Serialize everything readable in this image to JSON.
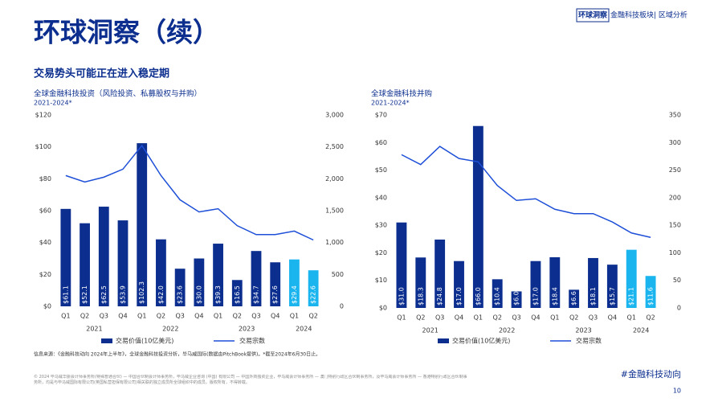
{
  "header": {
    "brand": "环球洞察",
    "section": "金融科技板块",
    "region": "| 区域分析"
  },
  "title": "环球洞察（续）",
  "subtitle": "交易势头可能正在进入稳定期",
  "source": "信息来源：《金融科技动向 2024年上半年》，全球金融科技投资分析，毕马威国际(数据由PitchBook提供)。*截至2024年6月30日止。",
  "footer": {
    "legal": "© 2024 毕马威华振会计师事务所(特殊普通合伙) — 中国合伙制会计师事务所，毕马威企业咨询 (中国) 有限公司 — 中国外商独资企业，毕马威会计师事务所 — 澳门特别行政区合伙制事务所，及毕马威会计师事务所 — 香港特别行政区合伙制事务所，均是与毕马威国际有限公司(英国私营担保有限公司)相关联的独立成员所全球组织中的成员。版权所有，不得转载。",
    "hashtag": "#金融科技动向",
    "page": "10"
  },
  "chart_data": [
    {
      "type": "bar-line",
      "title": "全球金融科技投资（风险投资、私募股权与并购）",
      "subtitle": "2021-2024*",
      "categories": [
        "Q1",
        "Q2",
        "Q3",
        "Q4",
        "Q1",
        "Q2",
        "Q3",
        "Q4",
        "Q1",
        "Q2",
        "Q3",
        "Q4",
        "Q1",
        "Q2"
      ],
      "x_groups": [
        "2021",
        "2022",
        "2023",
        "2024"
      ],
      "series": [
        {
          "name": "交易价值(10亿美元)",
          "color": "#0c2f8f",
          "bar_colors": [
            "#0c2f8f",
            "#0c2f8f",
            "#0c2f8f",
            "#0c2f8f",
            "#0c2f8f",
            "#0c2f8f",
            "#0c2f8f",
            "#0c2f8f",
            "#0c2f8f",
            "#0c2f8f",
            "#0c2f8f",
            "#0c2f8f",
            "#1ab5ef",
            "#1ab5ef"
          ],
          "values": [
            61.1,
            52.1,
            62.5,
            53.9,
            102.3,
            42.0,
            23.6,
            30.0,
            39.3,
            16.5,
            34.7,
            27.6,
            29.4,
            22.6
          ],
          "value_labels": [
            "$61.1",
            "$52.1",
            "$62.5",
            "$53.9",
            "$102.3",
            "$42.0",
            "$23.6",
            "$30.0",
            "$39.3",
            "$16.5",
            "$34.7",
            "$27.6",
            "$29.4",
            "$22.6"
          ]
        },
        {
          "name": "交易宗数",
          "color": "#1e4fd8",
          "axis": "y2",
          "values": [
            2050,
            1950,
            2025,
            2150,
            2520,
            2050,
            1670,
            1480,
            1530,
            1265,
            1125,
            1125,
            1180,
            1040
          ]
        }
      ],
      "ylim": [
        0,
        120
      ],
      "yticks": [
        {
          "value": 0,
          "label": "$0"
        },
        {
          "value": 20,
          "label": "$20"
        },
        {
          "value": 40,
          "label": "$40"
        },
        {
          "value": 60,
          "label": "$60"
        },
        {
          "value": 80,
          "label": "$80"
        },
        {
          "value": 100,
          "label": "$100"
        },
        {
          "value": 120,
          "label": "$120"
        }
      ],
      "y2lim": [
        0,
        3000
      ],
      "y2ticks": [
        0,
        500,
        {
          "value": 1000,
          "label": "1,000"
        },
        {
          "value": 1500,
          "label": "1,500"
        },
        {
          "value": 2000,
          "label": "2,000"
        },
        {
          "value": 2500,
          "label": "2,500"
        },
        {
          "value": 3000,
          "label": "3,000"
        }
      ]
    },
    {
      "type": "bar-line",
      "title": "全球金融科技并购",
      "subtitle": "2021-2024*",
      "categories": [
        "Q1",
        "Q2",
        "Q3",
        "Q4",
        "Q1",
        "Q2",
        "Q3",
        "Q4",
        "Q1",
        "Q2",
        "Q3",
        "Q4",
        "Q1",
        "Q2"
      ],
      "x_groups": [
        "2021",
        "2022",
        "2023",
        "2024"
      ],
      "series": [
        {
          "name": "交易价值(10亿美元)",
          "color": "#0c2f8f",
          "bar_colors": [
            "#0c2f8f",
            "#0c2f8f",
            "#0c2f8f",
            "#0c2f8f",
            "#0c2f8f",
            "#0c2f8f",
            "#0c2f8f",
            "#0c2f8f",
            "#0c2f8f",
            "#0c2f8f",
            "#0c2f8f",
            "#0c2f8f",
            "#1ab5ef",
            "#1ab5ef"
          ],
          "values": [
            31.0,
            18.3,
            24.8,
            17.0,
            66.0,
            10.4,
            6.0,
            17.0,
            18.4,
            6.6,
            18.1,
            15.7,
            21.1,
            11.6
          ],
          "value_labels": [
            "$31.0",
            "$18.3",
            "$24.8",
            "$17.0",
            "$66.0",
            "$10.4",
            "$6.0",
            "$17.0",
            "$18.4",
            "$6.6",
            "$18.1",
            "$15.7",
            "$21.1",
            "$11.6"
          ]
        },
        {
          "name": "交易宗数",
          "color": "#1e4fd8",
          "axis": "y2",
          "values": [
            278,
            260,
            293,
            271,
            265,
            222,
            195,
            198,
            179,
            171,
            171,
            156,
            136,
            128
          ]
        }
      ],
      "ylim": [
        0,
        70
      ],
      "yticks": [
        {
          "value": 0,
          "label": "$0"
        },
        {
          "value": 10,
          "label": "$10"
        },
        {
          "value": 20,
          "label": "$20"
        },
        {
          "value": 30,
          "label": "$30"
        },
        {
          "value": 40,
          "label": "$40"
        },
        {
          "value": 50,
          "label": "$50"
        },
        {
          "value": 60,
          "label": "$60"
        },
        {
          "value": 70,
          "label": "$70"
        }
      ],
      "y2lim": [
        0,
        350
      ],
      "y2ticks": [
        0,
        50,
        100,
        150,
        200,
        250,
        300,
        350
      ]
    }
  ]
}
